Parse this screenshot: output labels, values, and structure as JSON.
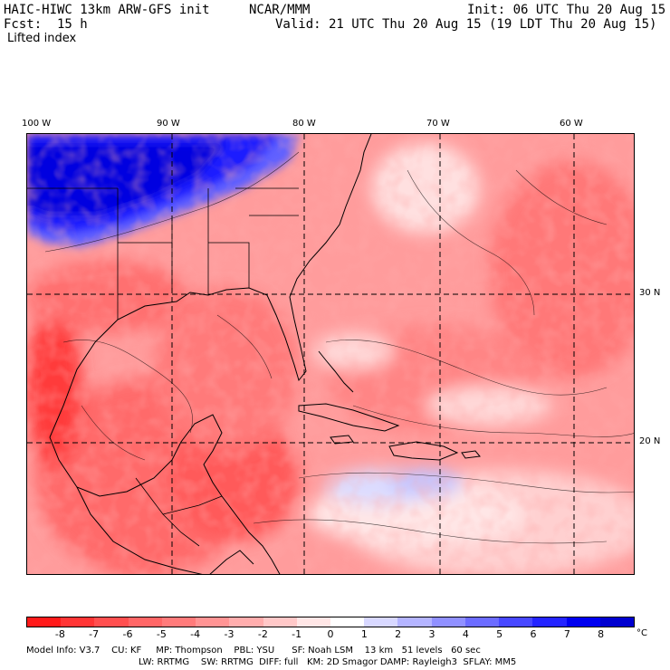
{
  "header": {
    "model": "HAIC-HIWC 13km ARW-GFS init",
    "org": "NCAR/MMM",
    "init": "Init: 06 UTC Thu 20 Aug 15",
    "fcst": "Fcst:  15 h",
    "valid": "Valid: 21 UTC Thu 20 Aug 15 (19 LDT Thu 20 Aug 15)",
    "field": "Lifted index"
  },
  "axes": {
    "lon_labels": [
      "100 W",
      "90 W",
      "80 W",
      "70 W",
      "60 W"
    ],
    "lat_labels": [
      "30 N",
      "20 N"
    ]
  },
  "colorbar": {
    "labels": [
      "-8",
      "-7",
      "-6",
      "-5",
      "-4",
      "-3",
      "-2",
      "-1",
      "0",
      "1",
      "2",
      "3",
      "4",
      "5",
      "6",
      "7",
      "8"
    ],
    "unit": "°C",
    "colors": [
      "#ff1a1a",
      "#ff3535",
      "#ff4f4f",
      "#ff6666",
      "#ff7b7b",
      "#ff9494",
      "#ffadad",
      "#ffc8c8",
      "#ffe6e6",
      "#ffffff",
      "#d8d8ff",
      "#b4b4ff",
      "#9090ff",
      "#6c6cff",
      "#4848ff",
      "#2424ff",
      "#0000f0",
      "#0000d0"
    ]
  },
  "footer": {
    "line1": "Model Info: V3.7    CU: KF     MP: Thompson    PBL: YSU      SF: Noah LSM    13 km   51 levels   60 sec",
    "line2": "LW: RRTMG    SW: RRTMG  DIFF: full   KM: 2D Smagor DAMP: Rayleigh3  SFLAY: MM5"
  }
}
